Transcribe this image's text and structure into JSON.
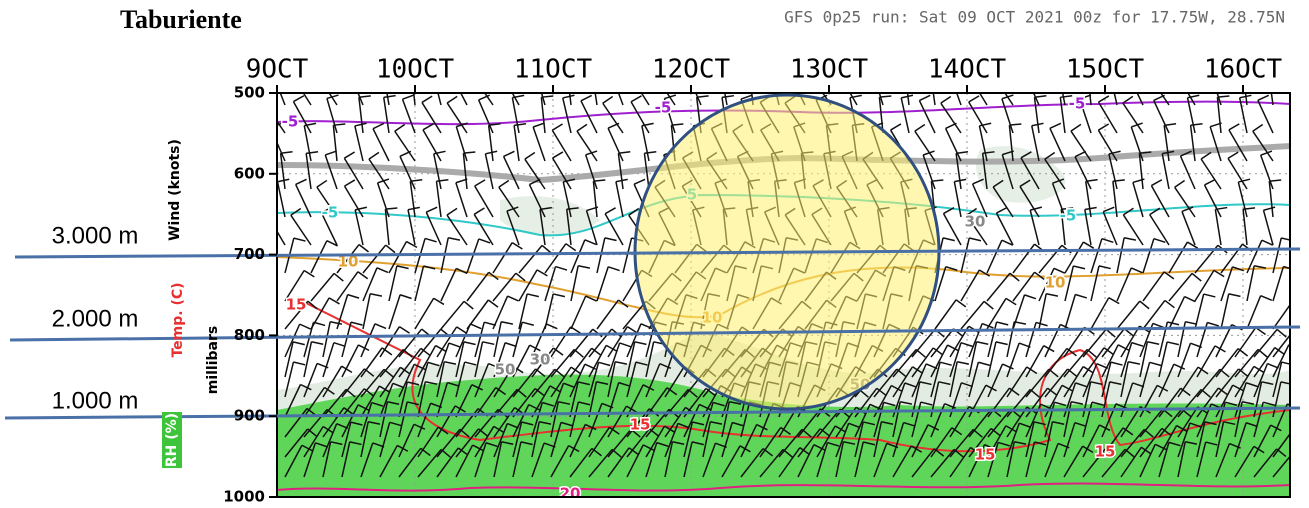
{
  "chart_data": {
    "type": "meteogram",
    "title": "Taburiente",
    "subtitle": "GFS 0p25 run: Sat 09 OCT 2021 00z for 17.75W, 28.75N",
    "categories": [
      "9OCT",
      "10OCT",
      "11OCT",
      "12OCT",
      "13OCT",
      "14OCT",
      "15OCT",
      "16OCT"
    ],
    "ylim": [
      500,
      1000
    ],
    "yticks": [
      500,
      600,
      700,
      800,
      900,
      1000
    ],
    "y_labels": [
      "Wind (knots)",
      "Temp. (C)",
      "millibars",
      "RH (%)"
    ],
    "contour_labels": [
      -5,
      -5,
      -5,
      -5,
      5,
      -5,
      10,
      10,
      10,
      15,
      15,
      15,
      15,
      20,
      50,
      30,
      30,
      50
    ],
    "annotations": [
      "3.000 m",
      "2.000 m",
      "1.000 m"
    ]
  }
}
